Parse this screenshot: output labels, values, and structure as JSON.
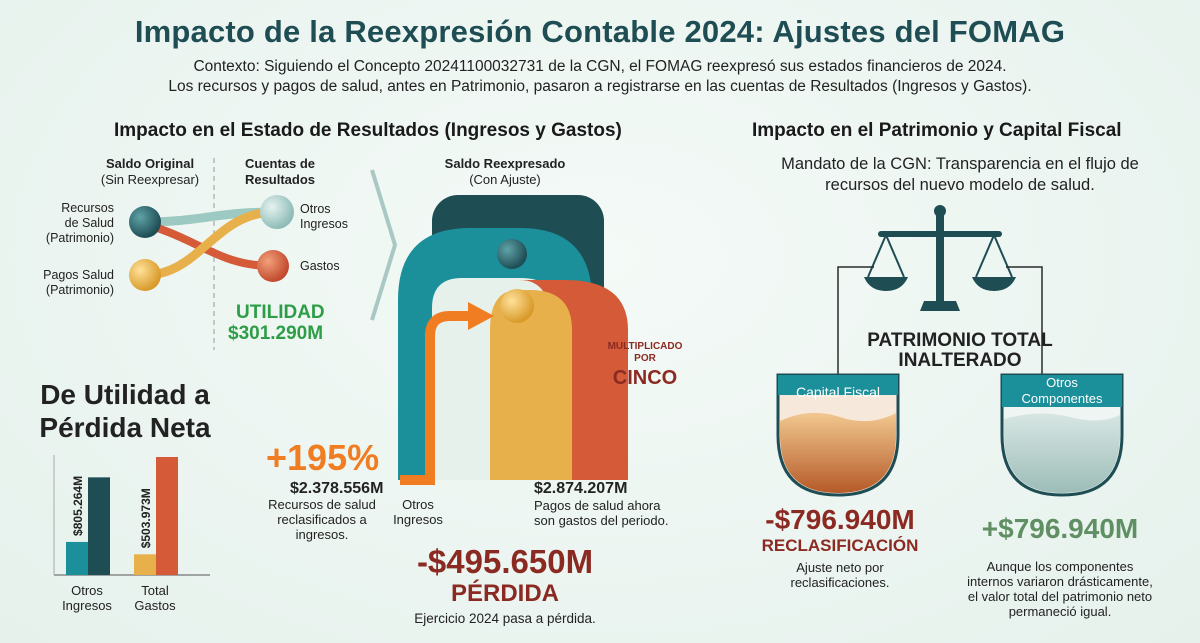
{
  "header": {
    "title": "Impacto de la Reexpresión Contable 2024: Ajustes del FOMAG",
    "context_line1": "Contexto: Siguiendo el Concepto 20241100032731 de la CGN, el FOMAG reexpresó sus estados financieros de 2024.",
    "context_line2": "Los recursos y pagos de salud, antes en Patrimonio, pasaron a registrarse en las cuentas de Resultados (Ingresos y Gastos)."
  },
  "results": {
    "heading": "Impacto en el Estado de Resultados (Ingresos y Gastos)",
    "original_title": "Saldo Original",
    "original_sub": "(Sin Reexpresar)",
    "accounts_title_1": "Cuentas de",
    "accounts_title_2": "Resultados",
    "node_recursos_1": "Recursos",
    "node_recursos_2": "de Salud",
    "node_recursos_3": "(Patrimonio)",
    "node_pagos_1": "Pagos Salud",
    "node_pagos_2": "(Patrimonio)",
    "node_otros_1": "Otros",
    "node_otros_2": "Ingresos",
    "node_gastos": "Gastos",
    "utility_label": "UTILIDAD",
    "utility_value": "$301.290M",
    "restated_title": "Saldo Reexpresado",
    "restated_sub": "(Con Ajuste)",
    "multiplied_1": "MULTIPLICADO",
    "multiplied_2": "POR",
    "multiplied_3": "CINCO",
    "pct": "+195%",
    "income_value": "$2.378.556M",
    "income_desc_1": "Recursos de salud",
    "income_desc_2": "reclasificados a",
    "income_desc_3": "ingresos.",
    "income_axis_1": "Otros",
    "income_axis_2": "Ingresos",
    "expense_value": "$2.874.207M",
    "expense_desc_1": "Pagos de salud ahora",
    "expense_desc_2": "son gastos del periodo.",
    "loss_value": "-$495.650M",
    "loss_label": "PÉRDIDA",
    "loss_desc": "Ejercicio 2024 pasa a pérdida."
  },
  "chart_data": {
    "type": "bar",
    "title": "De Utilidad a Pérdida Neta",
    "categories": [
      "Otros Ingresos",
      "Total Gastos"
    ],
    "category_lines": [
      [
        "Otros",
        "Ingresos"
      ],
      [
        "Total",
        "Gastos"
      ]
    ],
    "series": [
      {
        "values": [
          805264,
          503973
        ],
        "labels": [
          "$805.264M",
          "$503.973M"
        ],
        "colors": [
          "#1b8f9a",
          "#e8b04a"
        ]
      },
      {
        "values": [
          2378556,
          2874207
        ],
        "colors": [
          "#1f4d54",
          "#d45a38"
        ]
      }
    ]
  },
  "equity": {
    "heading": "Impacto en el Patrimonio y Capital Fiscal",
    "mandate_1": "Mandato de la CGN: Transparencia en el flujo de",
    "mandate_2": "recursos del nuevo modelo de salud.",
    "total_1": "PATRIMONIO TOTAL",
    "total_2": "INALTERADO",
    "left_label": "Capital Fiscal",
    "right_label_1": "Otros",
    "right_label_2": "Componentes",
    "left_value": "-$796.940M",
    "left_title": "RECLASIFICACIÓN",
    "left_desc_1": "Ajuste neto por",
    "left_desc_2": "reclasificaciones.",
    "right_value": "+$796.940M",
    "right_desc_1": "Aunque los componentes",
    "right_desc_2": "internos variaron drásticamente,",
    "right_desc_3": "el valor total del patrimonio neto",
    "right_desc_4": "permaneció igual."
  },
  "colors": {
    "title": "#1f4d54",
    "teal": "#1b8f9a",
    "dark_teal": "#1f4d54",
    "orange": "#f07d22",
    "red": "#d45a38",
    "gold": "#e8b04a",
    "green": "#2e9d47",
    "maroon": "#8b2a22",
    "sage": "#5f8f62"
  }
}
